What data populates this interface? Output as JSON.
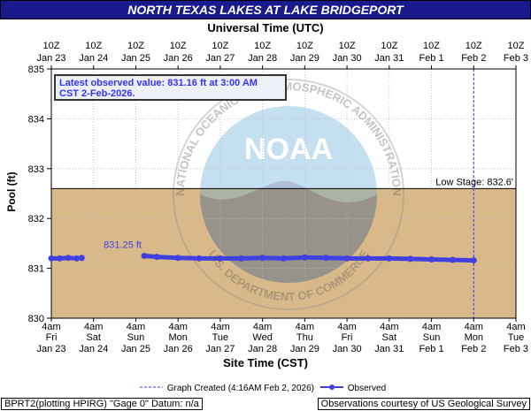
{
  "header": {
    "title": "NORTH TEXAS LAKES AT LAKE BRIDGEPORT",
    "top_axis_title": "Universal Time (UTC)",
    "bottom_axis_title": "Site Time (CST)",
    "ylabel": "Pool (ft)"
  },
  "latest": {
    "line1": "Latest observed value: 831.16 ft at 3:00 AM",
    "line2": "CST 2-Feb-2026."
  },
  "low_stage_label": "Low Stage: 832.6'",
  "annotation": "831.25 ft",
  "legend": {
    "created": "Graph Created (4:16AM Feb 2, 2026)",
    "observed": "Observed"
  },
  "footer": {
    "left": "BPRT2(plotting HPIRG) \"Gage 0\" Datum: n/a",
    "right": "Observations courtesy of US Geological Survey"
  },
  "watermark": {
    "ring_text": "NATIONAL OCEANIC AND ATMOSPHERIC ADMINISTRATION",
    "ring_text_bottom": "U.S. DEPARTMENT OF COMMERCE",
    "logo_text": "NOAA"
  },
  "colors": {
    "observed": "#4040e0",
    "low_stage_fill": "#d9b98a",
    "title_bg": "#1a1a8c",
    "created_line": "#3333ff"
  },
  "chart_data": {
    "type": "line",
    "title": "NORTH TEXAS LAKES AT LAKE BRIDGEPORT",
    "ylabel": "Pool (ft)",
    "xlabel": "Site Time (CST)",
    "ylim": [
      830,
      835
    ],
    "yticks": [
      830,
      831,
      832,
      833,
      834,
      835
    ],
    "low_stage": 832.6,
    "top_ticks": [
      {
        "t": "10Z",
        "d": "Jan 23"
      },
      {
        "t": "10Z",
        "d": "Jan 24"
      },
      {
        "t": "10Z",
        "d": "Jan 25"
      },
      {
        "t": "10Z",
        "d": "Jan 26"
      },
      {
        "t": "10Z",
        "d": "Jan 27"
      },
      {
        "t": "10Z",
        "d": "Jan 28"
      },
      {
        "t": "10Z",
        "d": "Jan 29"
      },
      {
        "t": "10Z",
        "d": "Jan 30"
      },
      {
        "t": "10Z",
        "d": "Jan 31"
      },
      {
        "t": "10Z",
        "d": "Feb 1"
      },
      {
        "t": "10Z",
        "d": "Feb 2"
      },
      {
        "t": "10Z",
        "d": "Feb 3"
      }
    ],
    "bottom_ticks": [
      {
        "t": "4am",
        "w": "Fri",
        "d": "Jan 23"
      },
      {
        "t": "4am",
        "w": "Sat",
        "d": "Jan 24"
      },
      {
        "t": "4am",
        "w": "Sun",
        "d": "Jan 25"
      },
      {
        "t": "4am",
        "w": "Mon",
        "d": "Jan 26"
      },
      {
        "t": "4am",
        "w": "Tue",
        "d": "Jan 27"
      },
      {
        "t": "4am",
        "w": "Wed",
        "d": "Jan 28"
      },
      {
        "t": "4am",
        "w": "Thu",
        "d": "Jan 29"
      },
      {
        "t": "4am",
        "w": "Fri",
        "d": "Jan 30"
      },
      {
        "t": "4am",
        "w": "Sat",
        "d": "Jan 31"
      },
      {
        "t": "4am",
        "w": "Sun",
        "d": "Feb 1"
      },
      {
        "t": "4am",
        "w": "Mon",
        "d": "Feb 2"
      },
      {
        "t": "4am",
        "w": "Tue",
        "d": "Feb 3"
      }
    ],
    "graph_created_day": 10.0,
    "series": [
      {
        "name": "Observed",
        "segments": [
          {
            "x": [
              0.0,
              0.2,
              0.4,
              0.6,
              0.72
            ],
            "y": [
              831.2,
              831.2,
              831.21,
              831.2,
              831.21
            ]
          },
          {
            "x": [
              2.2,
              2.5,
              3.0,
              3.5,
              4.0,
              4.5,
              5.0,
              5.5,
              6.0,
              6.5,
              7.0,
              7.5,
              8.0,
              8.5,
              9.0,
              9.5,
              10.0
            ],
            "y": [
              831.25,
              831.23,
              831.21,
              831.2,
              831.2,
              831.2,
              831.21,
              831.2,
              831.22,
              831.21,
              831.2,
              831.2,
              831.2,
              831.19,
              831.18,
              831.17,
              831.16
            ]
          }
        ]
      }
    ]
  }
}
